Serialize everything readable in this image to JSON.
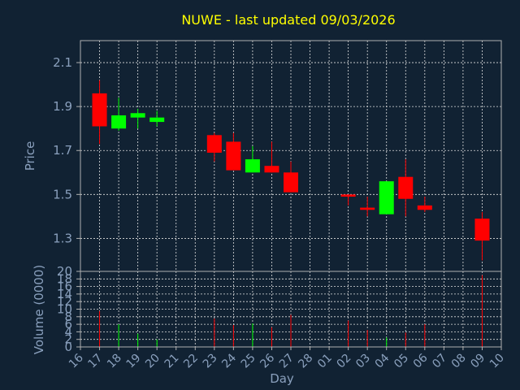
{
  "chart_data": {
    "type": "candlestick",
    "title": "NUWE - last updated 09/03/2026",
    "xlabel": "Day",
    "ylabel_price": "Price",
    "ylabel_volume": "Volume (0000)",
    "x_ticks": [
      "16",
      "17",
      "18",
      "19",
      "20",
      "21",
      "22",
      "23",
      "24",
      "25",
      "26",
      "27",
      "28",
      "01",
      "02",
      "03",
      "04",
      "05",
      "06",
      "07",
      "08",
      "09",
      "10"
    ],
    "price_ylim": [
      1.15,
      2.2
    ],
    "price_yticks": [
      1.3,
      1.5,
      1.7,
      1.9,
      2.1
    ],
    "price_ytick_labels": [
      "1.3",
      "1.5",
      "1.7",
      "1.9",
      "2.1"
    ],
    "volume_ylim": [
      0,
      20
    ],
    "volume_yticks": [
      0,
      2,
      4,
      6,
      8,
      10,
      12,
      14,
      16,
      18,
      20
    ],
    "volume_ytick_labels": [
      "0",
      "2",
      "4",
      "6",
      "8",
      "10",
      "12",
      "14",
      "16",
      "18",
      "20"
    ],
    "grid": true,
    "up_color": "#00ff00",
    "down_color": "#ff0000",
    "candles": [
      {
        "day": "17",
        "open": 1.96,
        "high": 2.02,
        "low": 1.73,
        "close": 1.81,
        "volume": 9.5
      },
      {
        "day": "18",
        "open": 1.8,
        "high": 1.94,
        "low": 1.79,
        "close": 1.86,
        "volume": 6.0
      },
      {
        "day": "19",
        "open": 1.85,
        "high": 1.89,
        "low": 1.8,
        "close": 1.87,
        "volume": 3.5
      },
      {
        "day": "20",
        "open": 1.83,
        "high": 1.88,
        "low": 1.81,
        "close": 1.85,
        "volume": 2.0
      },
      {
        "day": "23",
        "open": 1.77,
        "high": 1.78,
        "low": 1.65,
        "close": 1.69,
        "volume": 7.5
      },
      {
        "day": "24",
        "open": 1.74,
        "high": 1.78,
        "low": 1.61,
        "close": 1.61,
        "volume": 5.8
      },
      {
        "day": "25",
        "open": 1.6,
        "high": 1.72,
        "low": 1.6,
        "close": 1.66,
        "volume": 6.2
      },
      {
        "day": "26",
        "open": 1.63,
        "high": 1.74,
        "low": 1.6,
        "close": 1.6,
        "volume": 5.2
      },
      {
        "day": "27",
        "open": 1.6,
        "high": 1.65,
        "low": 1.51,
        "close": 1.51,
        "volume": 8.5
      },
      {
        "day": "02",
        "open": 1.5,
        "high": 1.5,
        "low": 1.45,
        "close": 1.49,
        "volume": 7.0
      },
      {
        "day": "03",
        "open": 1.44,
        "high": 1.49,
        "low": 1.4,
        "close": 1.43,
        "volume": 4.5
      },
      {
        "day": "04",
        "open": 1.41,
        "high": 1.56,
        "low": 1.41,
        "close": 1.56,
        "volume": 2.5
      },
      {
        "day": "05",
        "open": 1.58,
        "high": 1.66,
        "low": 1.4,
        "close": 1.48,
        "volume": 3.8
      },
      {
        "day": "06",
        "open": 1.45,
        "high": 1.49,
        "low": 1.42,
        "close": 1.43,
        "volume": 6.0
      },
      {
        "day": "09",
        "open": 1.39,
        "high": 1.42,
        "low": 1.2,
        "close": 1.29,
        "volume": 19.0
      }
    ]
  }
}
